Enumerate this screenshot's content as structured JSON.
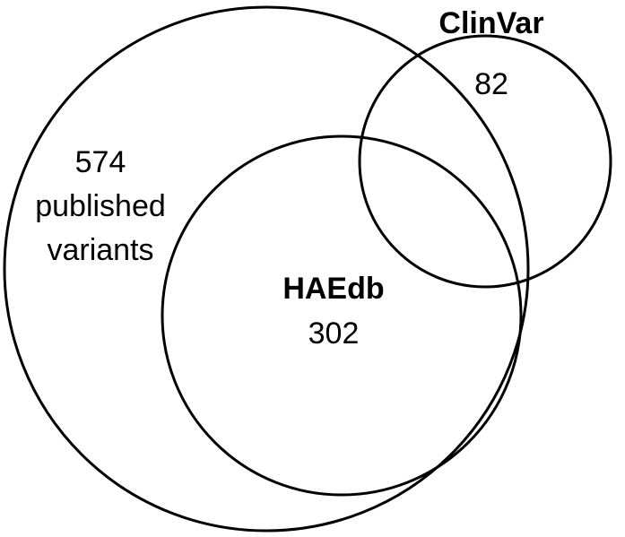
{
  "sets": {
    "published": {
      "count": "574",
      "label_line1": "published",
      "label_line2": "variants"
    },
    "haedb": {
      "name": "HAEdb",
      "count": "302"
    },
    "clinvar": {
      "name": "ClinVar",
      "count": "82"
    }
  },
  "colors": {
    "stroke": "#000000",
    "background": "#ffffff"
  }
}
